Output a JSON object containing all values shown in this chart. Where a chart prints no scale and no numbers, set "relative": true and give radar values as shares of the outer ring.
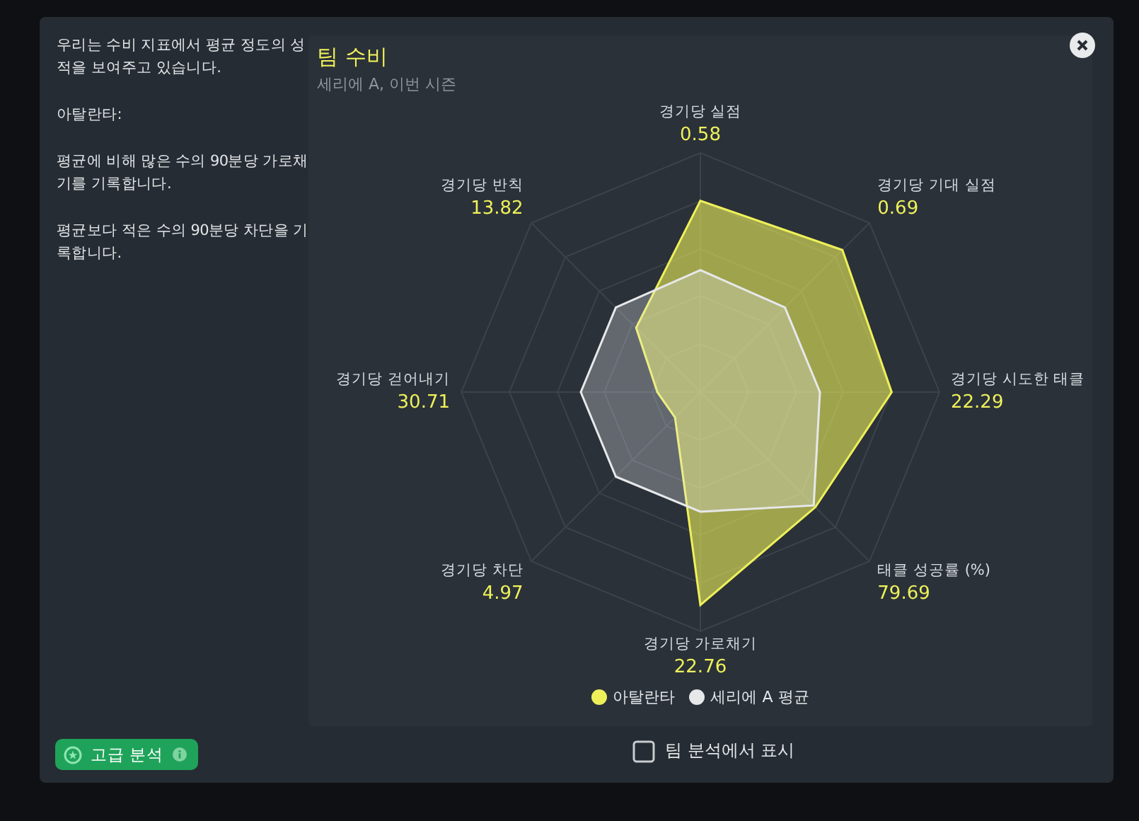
{
  "chart_data": {
    "type": "radar",
    "title": "팀 수비",
    "subtitle": "세리에 A, 이번 시즌",
    "relative": true,
    "grid": true,
    "legend": "bottom",
    "categories": [
      "경기당 실점\n0.58",
      "경기당 기대 실점\n0.69",
      "경기당 시도한 태클\n22.29",
      "태클 성공률 (%)\n79.69",
      "경기당 가로채기\n22.76",
      "경기당 차단\n4.97",
      "경기당 걷어내기\n30.71",
      "경기당 반칙\n13.82"
    ],
    "series": [
      {
        "name": "아탈란타",
        "color": "#eef05a",
        "values": [
          0.8,
          0.84,
          0.8,
          0.68,
          0.89,
          0.15,
          0.18,
          0.38
        ]
      },
      {
        "name": "세리에 A 평균",
        "color": "#e6e8ea",
        "values": [
          0.51,
          0.5,
          0.5,
          0.67,
          0.5,
          0.5,
          0.5,
          0.5
        ]
      }
    ],
    "annotations": [
      "우리는 수비 지표에서 평균 정도의 성적을 보여주고 있습니다.",
      "아탈란타:",
      "평균에 비해 많은 수의 90분당 가로채기를 기록합니다.",
      "평균보다 적은 수의 90분당 차단을 기록합니다.",
      "고급 분석",
      "팀 분석에서 표시"
    ]
  }
}
